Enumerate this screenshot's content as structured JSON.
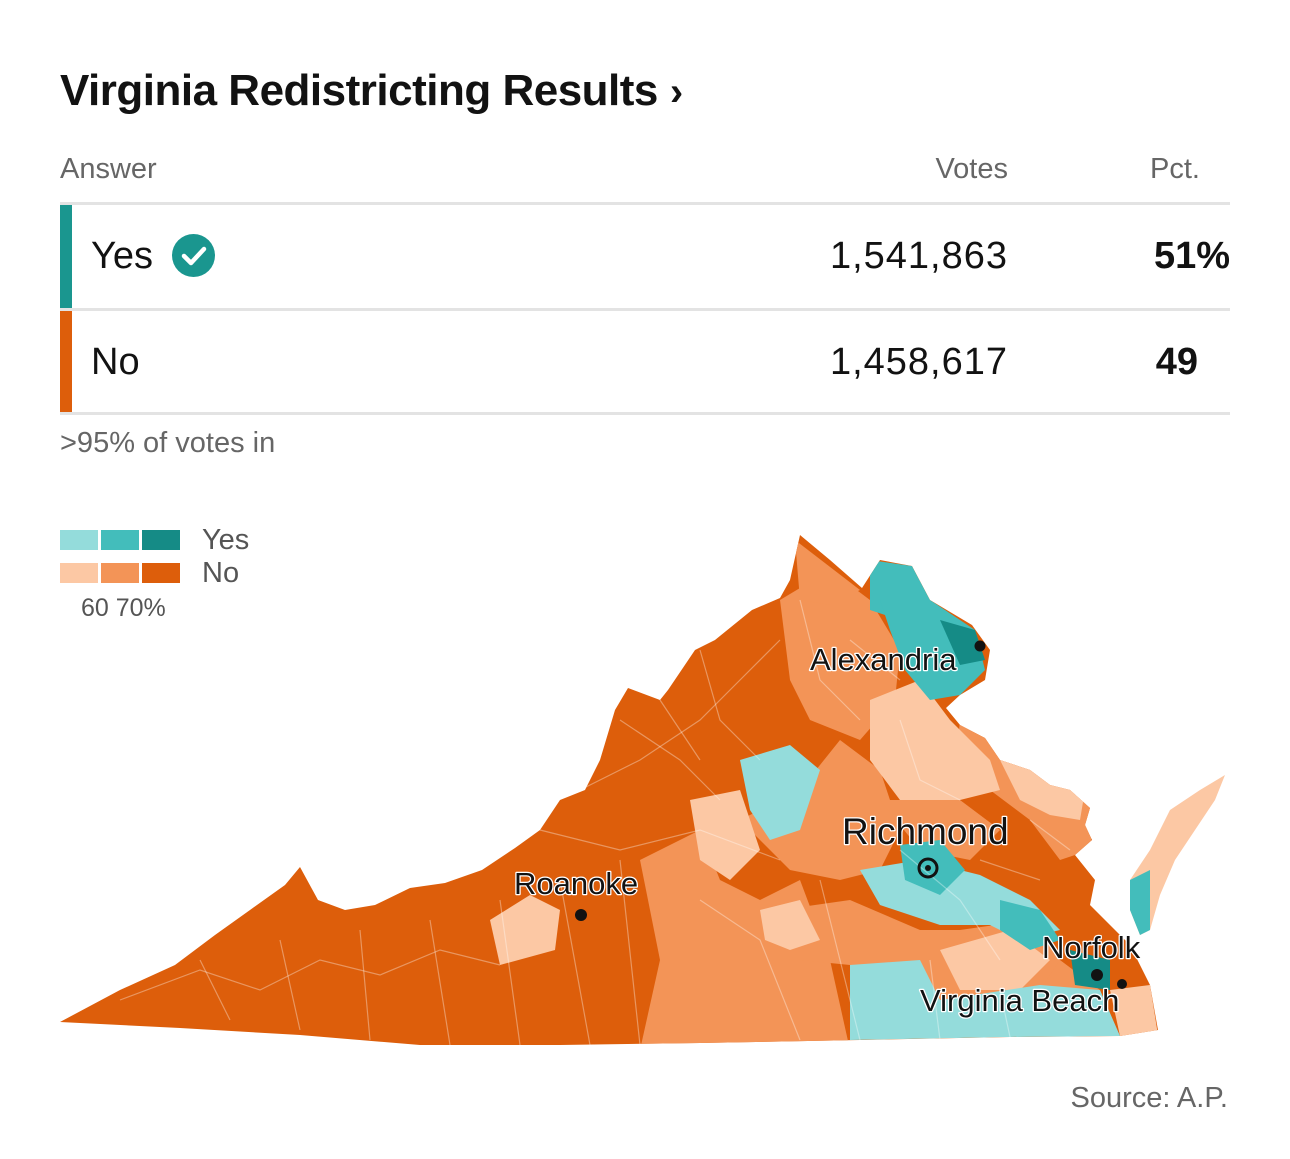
{
  "header": {
    "title": "Virginia Redistricting Results",
    "chevron": "›"
  },
  "table": {
    "columns": {
      "answer": "Answer",
      "votes": "Votes",
      "pct": "Pct."
    },
    "rows": [
      {
        "answer": "Yes",
        "votes": "1,541,863",
        "pct": "51%",
        "winner": true,
        "color": "#1a968f"
      },
      {
        "answer": "No",
        "votes": "1,458,617",
        "pct": "49",
        "winner": false,
        "color": "#dd5e0b"
      }
    ],
    "winner_icon": "check-circle-icon",
    "reporting": ">95% of votes in"
  },
  "legend": {
    "yes_label": "Yes",
    "no_label": "No",
    "scale": "60 70%",
    "yes_colors": [
      "#94dcdb",
      "#43bdbb",
      "#158b86"
    ],
    "no_colors": [
      "#fcc8a4",
      "#f39457",
      "#dd5e0b"
    ]
  },
  "map": {
    "region": "Virginia",
    "cities": [
      {
        "name": "Alexandria"
      },
      {
        "name": "Richmond"
      },
      {
        "name": "Roanoke"
      },
      {
        "name": "Norfolk"
      },
      {
        "name": "Virginia Beach"
      }
    ]
  },
  "footer": {
    "source": "Source: A.P."
  }
}
